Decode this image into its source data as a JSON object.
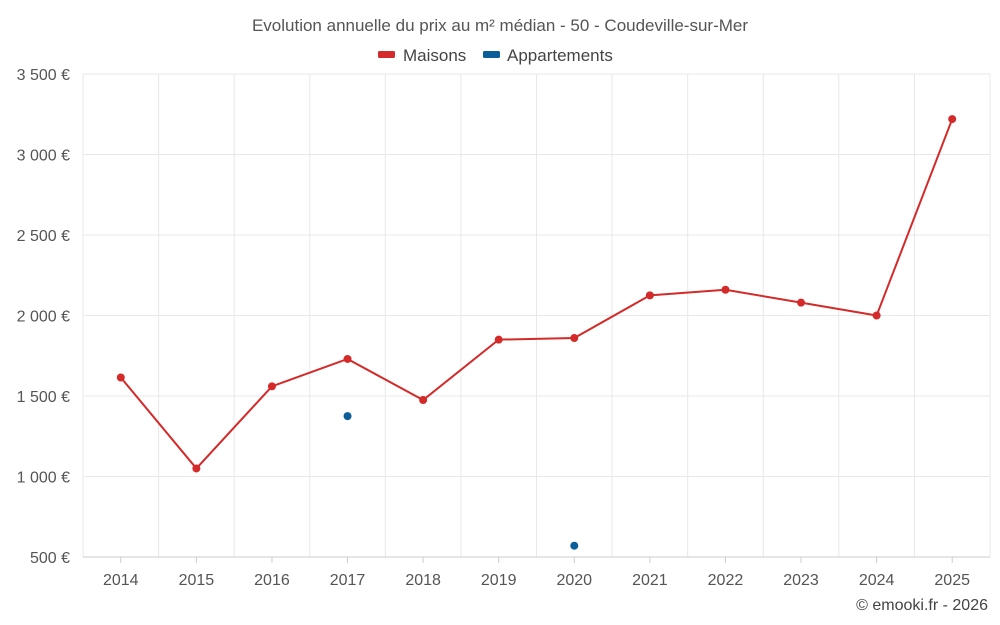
{
  "chart_data": {
    "type": "line",
    "title": "Evolution annuelle du prix au m² médian - 50 - Coudeville-sur-Mer",
    "categories": [
      "2014",
      "2015",
      "2016",
      "2017",
      "2018",
      "2019",
      "2020",
      "2021",
      "2022",
      "2023",
      "2024",
      "2025"
    ],
    "series": [
      {
        "name": "Maisons",
        "color": "#d42a2a",
        "values": [
          1615,
          1050,
          1560,
          1730,
          1475,
          1850,
          1860,
          2125,
          2160,
          2080,
          2000,
          3220
        ]
      },
      {
        "name": "Appartements",
        "color": "#0b5f99",
        "values": [
          null,
          null,
          null,
          1375,
          null,
          null,
          570,
          null,
          null,
          null,
          null,
          null
        ]
      }
    ],
    "ylim": [
      500,
      3500
    ],
    "yticks": [
      500,
      1000,
      1500,
      2000,
      2500,
      3000,
      3500
    ],
    "ytick_labels": [
      "500 €",
      "1 000 €",
      "1 500 €",
      "2 000 €",
      "2 500 €",
      "3 000 €",
      "3 500 €"
    ],
    "xlabel": "",
    "ylabel": "",
    "grid": true,
    "legend_position": "top-center"
  },
  "credit": "© emooki.fr - 2026"
}
